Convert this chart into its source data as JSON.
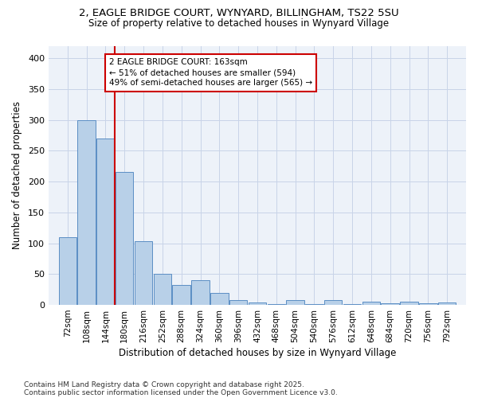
{
  "title1": "2, EAGLE BRIDGE COURT, WYNYARD, BILLINGHAM, TS22 5SU",
  "title2": "Size of property relative to detached houses in Wynyard Village",
  "xlabel": "Distribution of detached houses by size in Wynyard Village",
  "ylabel": "Number of detached properties",
  "footer1": "Contains HM Land Registry data © Crown copyright and database right 2025.",
  "footer2": "Contains public sector information licensed under the Open Government Licence v3.0.",
  "annotation_line1": "2 EAGLE BRIDGE COURT: 163sqm",
  "annotation_line2": "← 51% of detached houses are smaller (594)",
  "annotation_line3": "49% of semi-detached houses are larger (565) →",
  "categories": [
    72,
    108,
    144,
    180,
    216,
    252,
    288,
    324,
    360,
    396,
    432,
    468,
    504,
    540,
    576,
    612,
    648,
    684,
    720,
    756,
    792
  ],
  "values": [
    110,
    300,
    270,
    215,
    103,
    51,
    32,
    40,
    20,
    8,
    4,
    2,
    8,
    2,
    8,
    2,
    5,
    3,
    5,
    3,
    4
  ],
  "bar_step": 36,
  "bar_color": "#b8d0e8",
  "bar_edge_color": "#5b8ec4",
  "vline_color": "#cc0000",
  "vline_x": 162,
  "grid_color": "#c8d4e8",
  "bg_color": "#edf2f9",
  "annotation_box_color": "#cc0000",
  "annotation_fill": "#ffffff",
  "ylim": [
    0,
    420
  ],
  "yticks": [
    0,
    50,
    100,
    150,
    200,
    250,
    300,
    350,
    400
  ]
}
